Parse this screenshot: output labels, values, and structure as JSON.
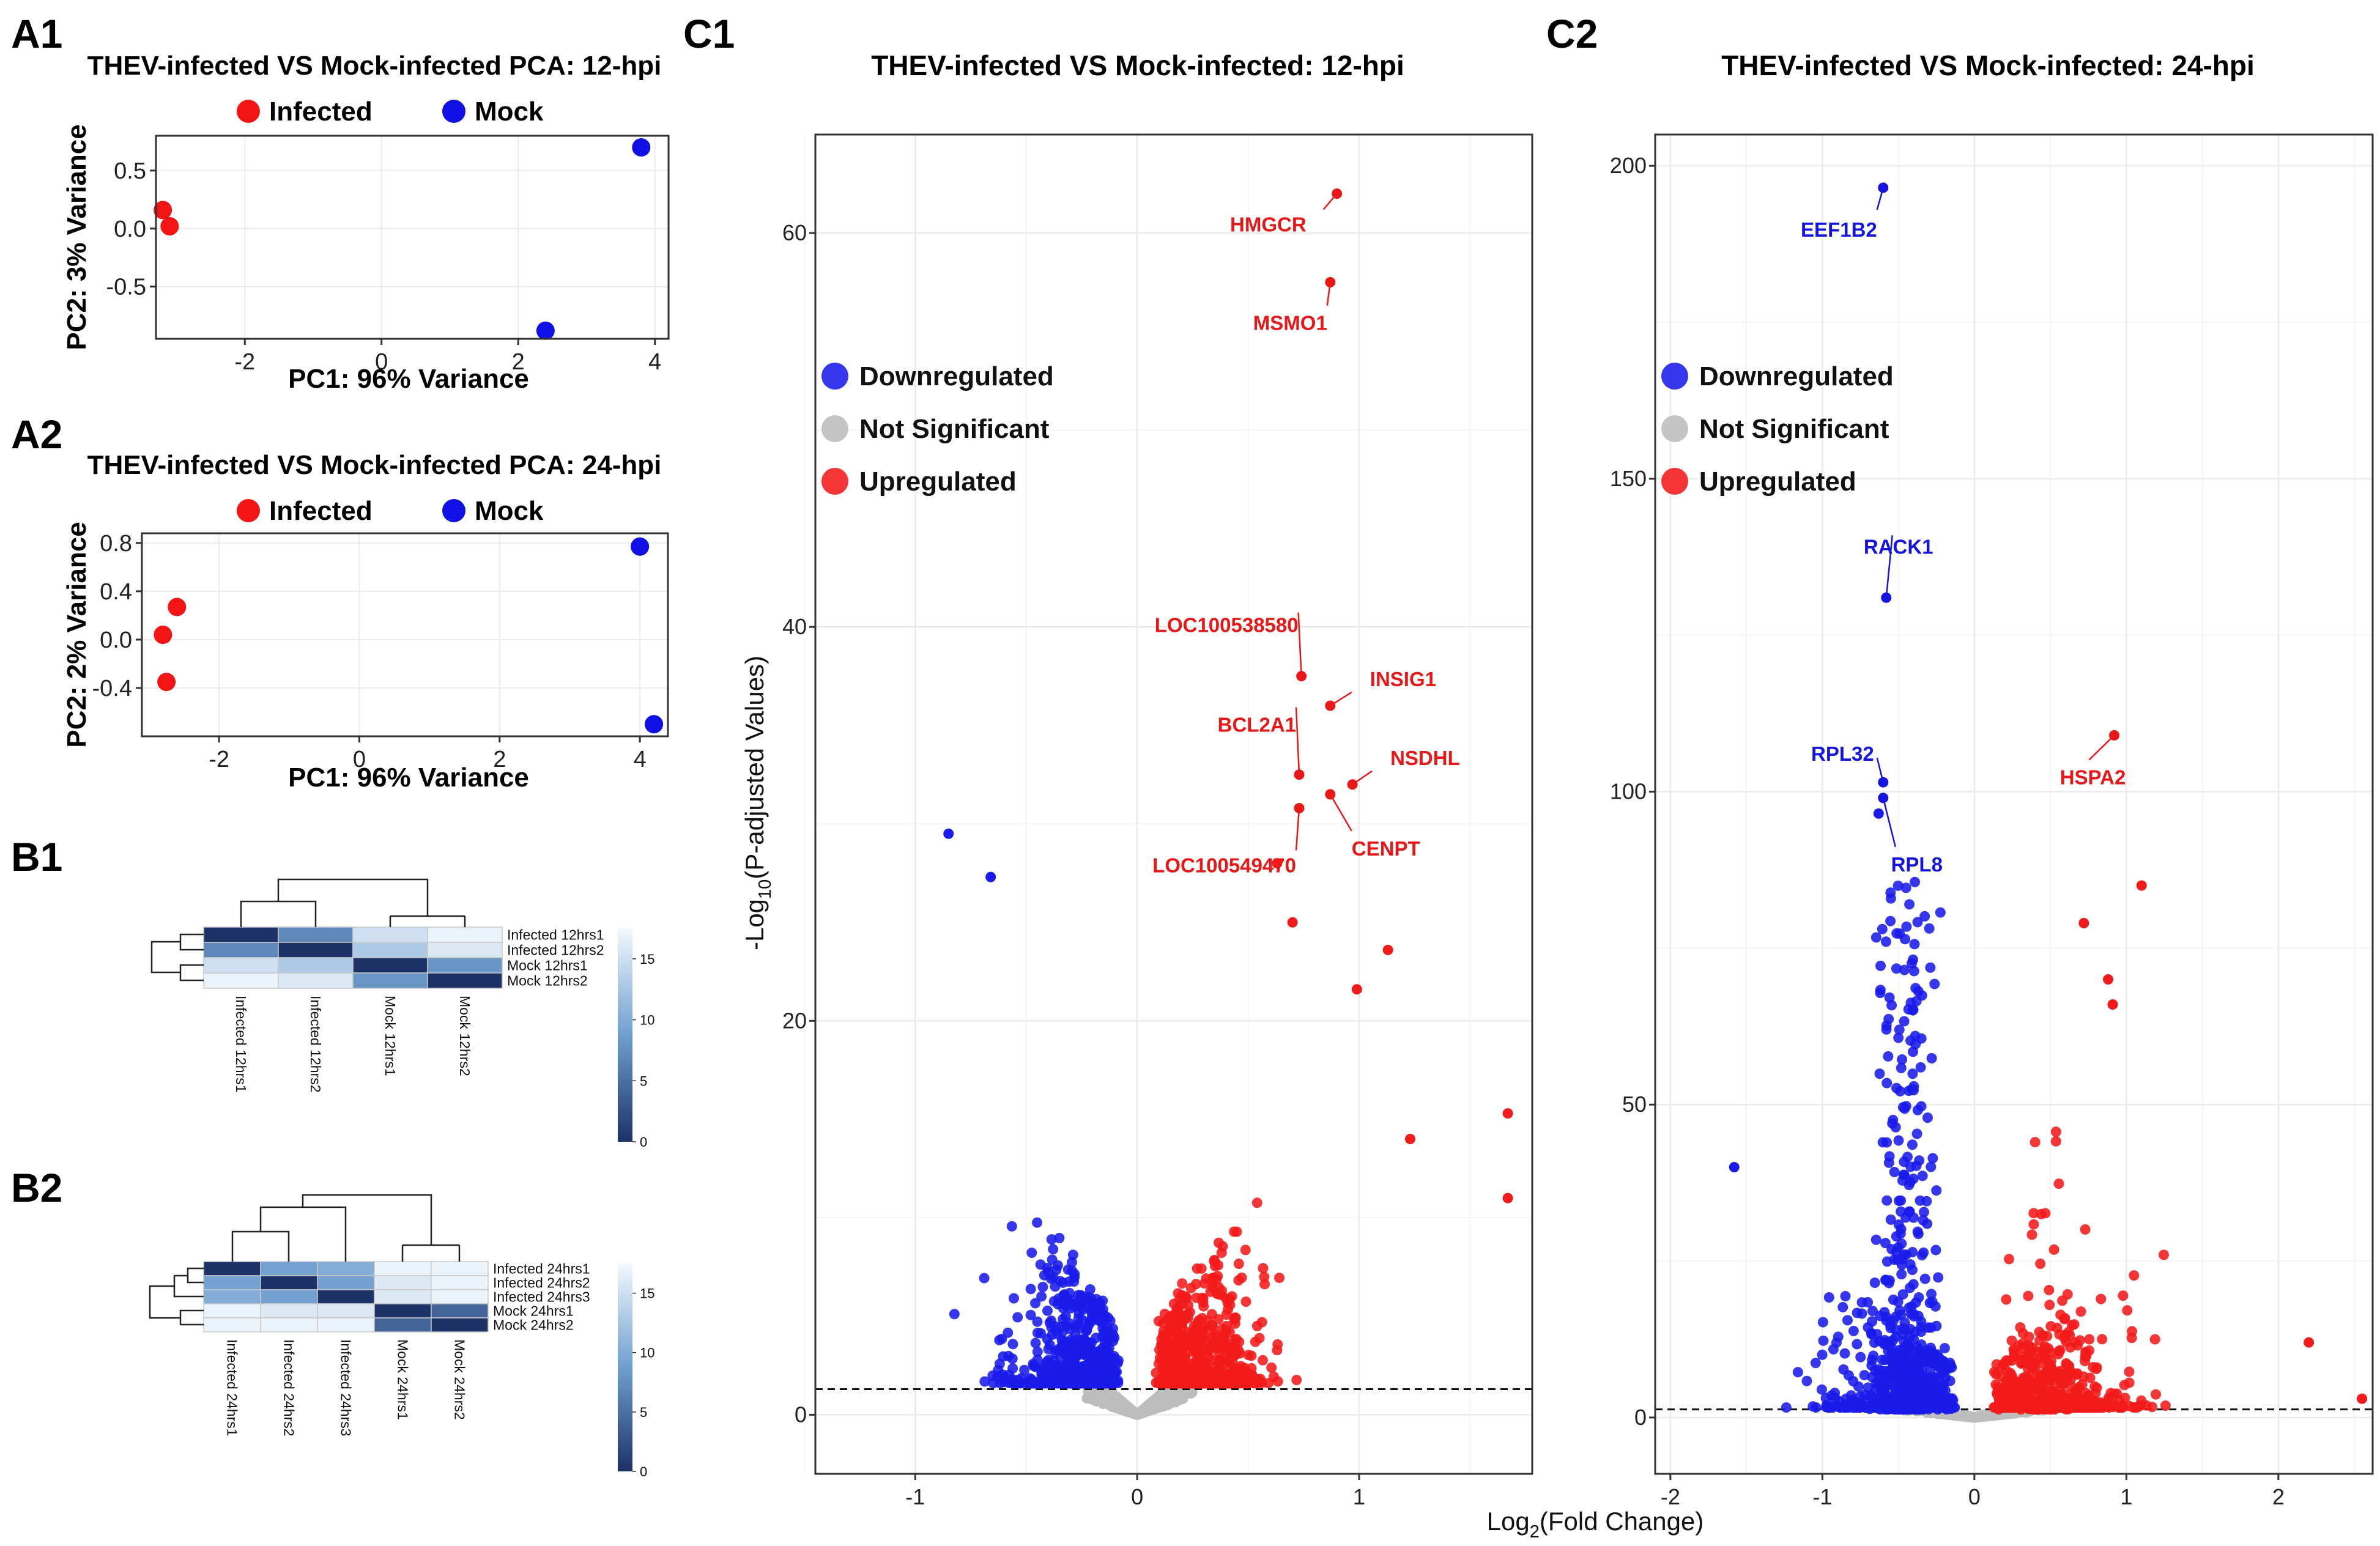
{
  "colors": {
    "infected": "#f31414",
    "mock": "#1010e6",
    "down": "#1a1aeb",
    "up": "#f21a1a",
    "ns": "#bdbdbd",
    "heat_high": "#f3f8fd",
    "heat_mid": "#6f9fcf",
    "heat_low": "#1d3266",
    "grid": "#ebebeb"
  },
  "panels": {
    "a1_label": "A1",
    "a2_label": "A2",
    "b1_label": "B1",
    "b2_label": "B2",
    "c1_label": "C1",
    "c2_label": "C2"
  },
  "shared": {
    "volcano_xlabel_pre": "Log",
    "volcano_xlabel_sub": "2",
    "volcano_xlabel_post": "(Fold Change)",
    "volcano_ylabel_pre": "-Log",
    "volcano_ylabel_sub": "10",
    "volcano_ylabel_post": "(P-adjusted Values)",
    "legend_down": "Downregulated",
    "legend_ns": "Not Significant",
    "legend_up": "Upregulated"
  },
  "chart_data": [
    {
      "id": "A1",
      "type": "scatter",
      "title": "THEV-infected VS Mock-infected PCA: 12-hpi",
      "xlabel": "PC1: 96% Variance",
      "ylabel": "PC2: 3% Variance",
      "xlim": [
        -3.3,
        4.2
      ],
      "ylim": [
        -0.95,
        0.8
      ],
      "xticks": [
        -2,
        0,
        2,
        4
      ],
      "yticks": [
        0.5,
        0.0,
        -0.5
      ],
      "ytick_labels": [
        "0.5",
        "0.0",
        "-0.5"
      ],
      "legend": [
        "Infected",
        "Mock"
      ],
      "series": [
        {
          "name": "Infected",
          "x": [
            -3.2,
            -3.1
          ],
          "y": [
            0.16,
            0.02
          ]
        },
        {
          "name": "Mock",
          "x": [
            3.8,
            2.4
          ],
          "y": [
            0.7,
            -0.88
          ]
        }
      ]
    },
    {
      "id": "A2",
      "type": "scatter",
      "title": "THEV-infected VS Mock-infected PCA: 24-hpi",
      "xlabel": "PC1: 96% Variance",
      "ylabel": "PC2: 2% Variance",
      "xlim": [
        -3.1,
        4.4
      ],
      "ylim": [
        -0.8,
        0.88
      ],
      "xticks": [
        -2,
        0,
        2,
        4
      ],
      "yticks": [
        0.8,
        0.4,
        0.0,
        -0.4
      ],
      "ytick_labels": [
        "0.8",
        "0.4",
        "0.0",
        "-0.4"
      ],
      "legend": [
        "Infected",
        "Mock"
      ],
      "series": [
        {
          "name": "Infected",
          "x": [
            -2.6,
            -2.8,
            -2.75
          ],
          "y": [
            0.27,
            0.04,
            -0.35
          ]
        },
        {
          "name": "Mock",
          "x": [
            4.0,
            4.2
          ],
          "y": [
            0.77,
            -0.7
          ]
        }
      ]
    },
    {
      "id": "B1",
      "type": "heatmap",
      "row_labels": [
        "Infected 12hrs1",
        "Infected 12hrs2",
        "Mock 12hrs1",
        "Mock 12hrs2"
      ],
      "col_labels": [
        "Infected 12hrs1",
        "Infected 12hrs2",
        "Mock 12hrs1",
        "Mock 12hrs2"
      ],
      "values": [
        [
          0,
          7,
          15,
          17
        ],
        [
          7,
          0,
          13,
          16
        ],
        [
          15,
          13,
          0,
          8
        ],
        [
          17,
          16,
          8,
          0
        ]
      ],
      "colorbar_ticks": [
        15,
        10,
        5,
        0
      ],
      "vmax": 17.5
    },
    {
      "id": "B2",
      "type": "heatmap",
      "row_labels": [
        "Infected 24hrs1",
        "Infected 24hrs2",
        "Infected 24hrs3",
        "Mock 24hrs1",
        "Mock 24hrs2"
      ],
      "col_labels": [
        "Infected 24hrs1",
        "Infected 24hrs2",
        "Infected 24hrs3",
        "Mock 24hrs1",
        "Mock 24hrs2"
      ],
      "values": [
        [
          0,
          9,
          10,
          17,
          17
        ],
        [
          9,
          0,
          9,
          16,
          17
        ],
        [
          10,
          9,
          0,
          16,
          17
        ],
        [
          17,
          16,
          16,
          0,
          4
        ],
        [
          17,
          17,
          17,
          4,
          0
        ]
      ],
      "colorbar_ticks": [
        15,
        10,
        5,
        0
      ],
      "vmax": 17.5
    },
    {
      "id": "C1",
      "type": "scatter",
      "title": "THEV-infected VS Mock-infected: 12-hpi",
      "xlim": [
        -1.45,
        1.78
      ],
      "ylim": [
        -3,
        65
      ],
      "xticks": [
        -1,
        0,
        1
      ],
      "yticks": [
        0,
        20,
        40,
        60
      ],
      "threshold_y": 1.3,
      "highlighted": [
        {
          "label": "HMGCR",
          "x": 0.9,
          "y": 62,
          "class": "up"
        },
        {
          "label": "MSMO1",
          "x": 0.87,
          "y": 57.5,
          "class": "up"
        },
        {
          "label": "LOC100538580",
          "x": 0.74,
          "y": 37.5,
          "class": "up"
        },
        {
          "label": "INSIG1",
          "x": 0.87,
          "y": 36,
          "class": "up"
        },
        {
          "label": "BCL2A1",
          "x": 0.73,
          "y": 32.5,
          "class": "up"
        },
        {
          "label": "NSDHL",
          "x": 0.97,
          "y": 32,
          "class": "up"
        },
        {
          "label": "CENPT",
          "x": 0.87,
          "y": 31.5,
          "class": "up"
        },
        {
          "label": "LOC100549470",
          "x": 0.73,
          "y": 30.8,
          "class": "up"
        }
      ],
      "extra_points": [
        {
          "x": -0.85,
          "y": 29.5,
          "class": "down"
        },
        {
          "x": -0.66,
          "y": 27.3,
          "class": "down"
        },
        {
          "x": 0.63,
          "y": 28,
          "class": "up"
        },
        {
          "x": 0.7,
          "y": 25,
          "class": "up"
        },
        {
          "x": 1.13,
          "y": 23.6,
          "class": "up"
        },
        {
          "x": 0.99,
          "y": 21.6,
          "class": "up"
        },
        {
          "x": 1.67,
          "y": 15.3,
          "class": "up"
        },
        {
          "x": 1.67,
          "y": 11,
          "class": "up"
        },
        {
          "x": 1.23,
          "y": 14,
          "class": "up"
        }
      ]
    },
    {
      "id": "C2",
      "type": "scatter",
      "title": "THEV-infected VS Mock-infected: 24-hpi",
      "xlim": [
        -2.1,
        2.62
      ],
      "ylim": [
        -9,
        205
      ],
      "xticks": [
        -2,
        -1,
        0,
        1,
        2
      ],
      "yticks": [
        0,
        50,
        100,
        150,
        200
      ],
      "threshold_y": 1.3,
      "highlighted": [
        {
          "label": "EEF1B2",
          "x": -0.6,
          "y": 196.5,
          "class": "down"
        },
        {
          "label": "RACK1",
          "x": -0.58,
          "y": 131,
          "class": "down"
        },
        {
          "label": "RPL32",
          "x": -0.6,
          "y": 101.5,
          "class": "down"
        },
        {
          "label": "RPL8",
          "x": -0.6,
          "y": 99,
          "class": "down"
        },
        {
          "label": "HSPA2",
          "x": 0.92,
          "y": 109,
          "class": "up"
        }
      ],
      "extra_points": [
        {
          "x": -0.63,
          "y": 96.5,
          "class": "down"
        },
        {
          "x": 1.1,
          "y": 85,
          "class": "up"
        },
        {
          "x": 0.72,
          "y": 79,
          "class": "up"
        },
        {
          "x": 0.88,
          "y": 70,
          "class": "up"
        },
        {
          "x": 0.91,
          "y": 66,
          "class": "up"
        },
        {
          "x": -1.58,
          "y": 40,
          "class": "down"
        },
        {
          "x": 2.2,
          "y": 12,
          "class": "up"
        },
        {
          "x": 2.55,
          "y": 3,
          "class": "up"
        }
      ]
    }
  ]
}
